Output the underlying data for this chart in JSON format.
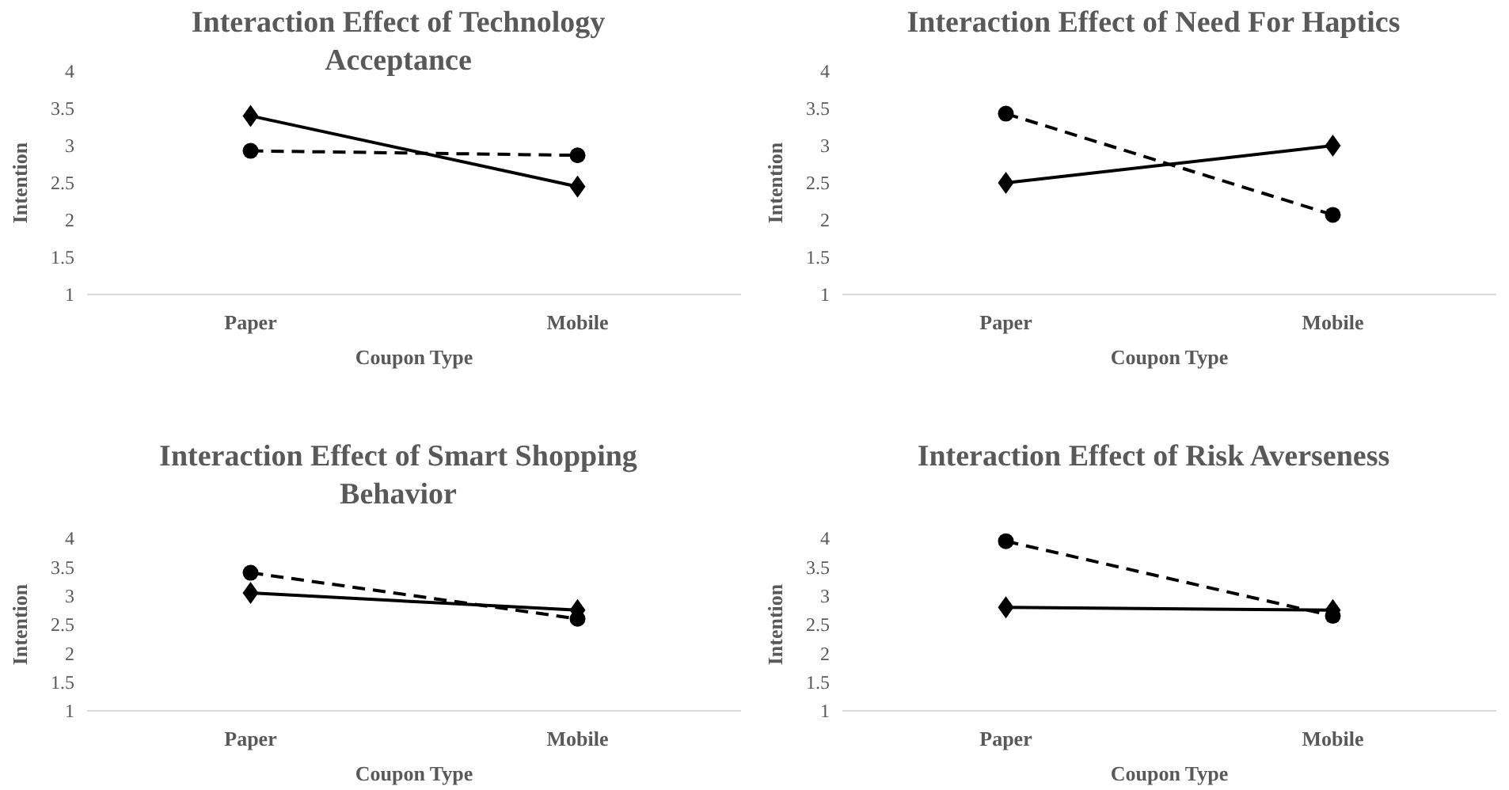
{
  "chart_data": [
    {
      "type": "line",
      "title": "Interaction Effect of Technology Acceptance",
      "xlabel": "Coupon Type",
      "ylabel": "Intention",
      "categories": [
        "Paper",
        "Mobile"
      ],
      "ylim": [
        1,
        4
      ],
      "yticks": [
        1,
        1.5,
        2,
        2.5,
        3,
        3.5,
        4
      ],
      "grid": false,
      "series": [
        {
          "color": "#000000",
          "marker": "diamond",
          "line_style": "solid",
          "values": [
            3.4,
            2.45
          ]
        },
        {
          "color": "#000000",
          "marker": "circle",
          "line_style": "dashed",
          "values": [
            2.93,
            2.87
          ]
        }
      ]
    },
    {
      "type": "line",
      "title": "Interaction Effect of Need For Haptics",
      "xlabel": "Coupon Type",
      "ylabel": "Intention",
      "categories": [
        "Paper",
        "Mobile"
      ],
      "ylim": [
        1,
        4
      ],
      "yticks": [
        1,
        1.5,
        2,
        2.5,
        3,
        3.5,
        4
      ],
      "grid": false,
      "series": [
        {
          "color": "#000000",
          "marker": "diamond",
          "line_style": "solid",
          "values": [
            2.5,
            3.0
          ]
        },
        {
          "color": "#000000",
          "marker": "circle",
          "line_style": "dashed",
          "values": [
            3.43,
            2.07
          ]
        }
      ]
    },
    {
      "type": "line",
      "title": "Interaction Effect of Smart Shopping Behavior",
      "xlabel": "Coupon Type",
      "ylabel": "Intention",
      "categories": [
        "Paper",
        "Mobile"
      ],
      "ylim": [
        1,
        4
      ],
      "yticks": [
        1,
        1.5,
        2,
        2.5,
        3,
        3.5,
        4
      ],
      "grid": false,
      "series": [
        {
          "color": "#000000",
          "marker": "diamond",
          "line_style": "solid",
          "values": [
            3.05,
            2.75
          ]
        },
        {
          "color": "#000000",
          "marker": "circle",
          "line_style": "dashed",
          "values": [
            3.4,
            2.6
          ]
        }
      ]
    },
    {
      "type": "line",
      "title": "Interaction Effect of Risk Averseness",
      "xlabel": "Coupon Type",
      "ylabel": "Intention",
      "categories": [
        "Paper",
        "Mobile"
      ],
      "ylim": [
        1,
        4
      ],
      "yticks": [
        1,
        1.5,
        2,
        2.5,
        3,
        3.5,
        4
      ],
      "grid": false,
      "series": [
        {
          "color": "#000000",
          "marker": "diamond",
          "line_style": "solid",
          "values": [
            2.8,
            2.75
          ]
        },
        {
          "color": "#000000",
          "marker": "circle",
          "line_style": "dashed",
          "values": [
            3.95,
            2.65
          ]
        }
      ]
    }
  ]
}
